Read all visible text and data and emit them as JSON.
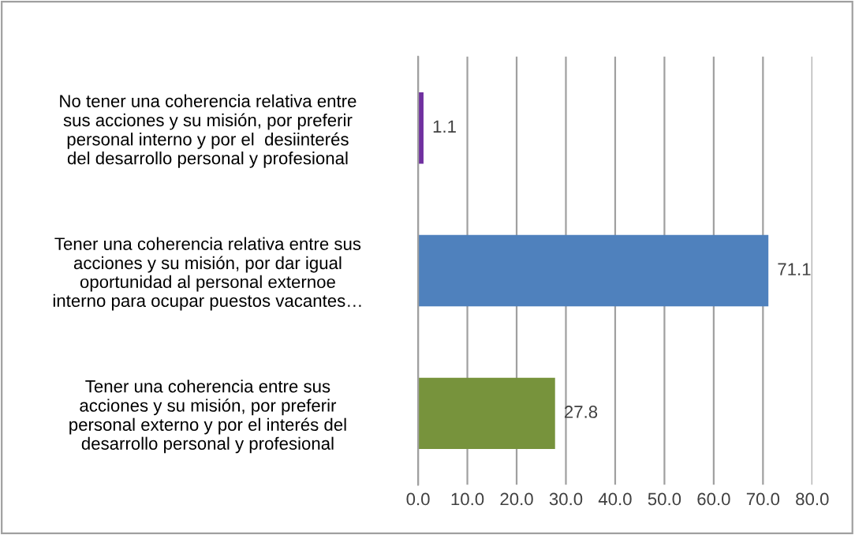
{
  "chart_data": {
    "type": "bar",
    "orientation": "horizontal",
    "categories": [
      "No tener una coherencia relativa entre\nsus acciones y su misión, por preferir\npersonal interno y por el  desiinterés\ndel desarrollo personal y profesional",
      "Tener una coherencia relativa entre sus\nacciones y su misión, por dar igual\noportunidad al personal externoe\ninterno para ocupar puestos vacantes…",
      "Tener una coherencia entre sus\nacciones y su misión, por preferir\npersonal externo y por el interés del\ndesarrollo personal y profesional"
    ],
    "values": [
      1.1,
      71.1,
      27.8
    ],
    "colors": [
      "#7030a0",
      "#4f81bd",
      "#77933c"
    ],
    "xlim": [
      0,
      80
    ],
    "xticks": [
      {
        "value": 0,
        "label": "0.0"
      },
      {
        "value": 10,
        "label": "10.0"
      },
      {
        "value": 20,
        "label": "20.0"
      },
      {
        "value": 30,
        "label": "30.0"
      },
      {
        "value": 40,
        "label": "40.0"
      },
      {
        "value": 50,
        "label": "50.0"
      },
      {
        "value": 60,
        "label": "60.0"
      },
      {
        "value": 70,
        "label": "70.0"
      },
      {
        "value": 80,
        "label": "80.0"
      }
    ],
    "grid": "x",
    "data_labels": true,
    "legend": false
  }
}
